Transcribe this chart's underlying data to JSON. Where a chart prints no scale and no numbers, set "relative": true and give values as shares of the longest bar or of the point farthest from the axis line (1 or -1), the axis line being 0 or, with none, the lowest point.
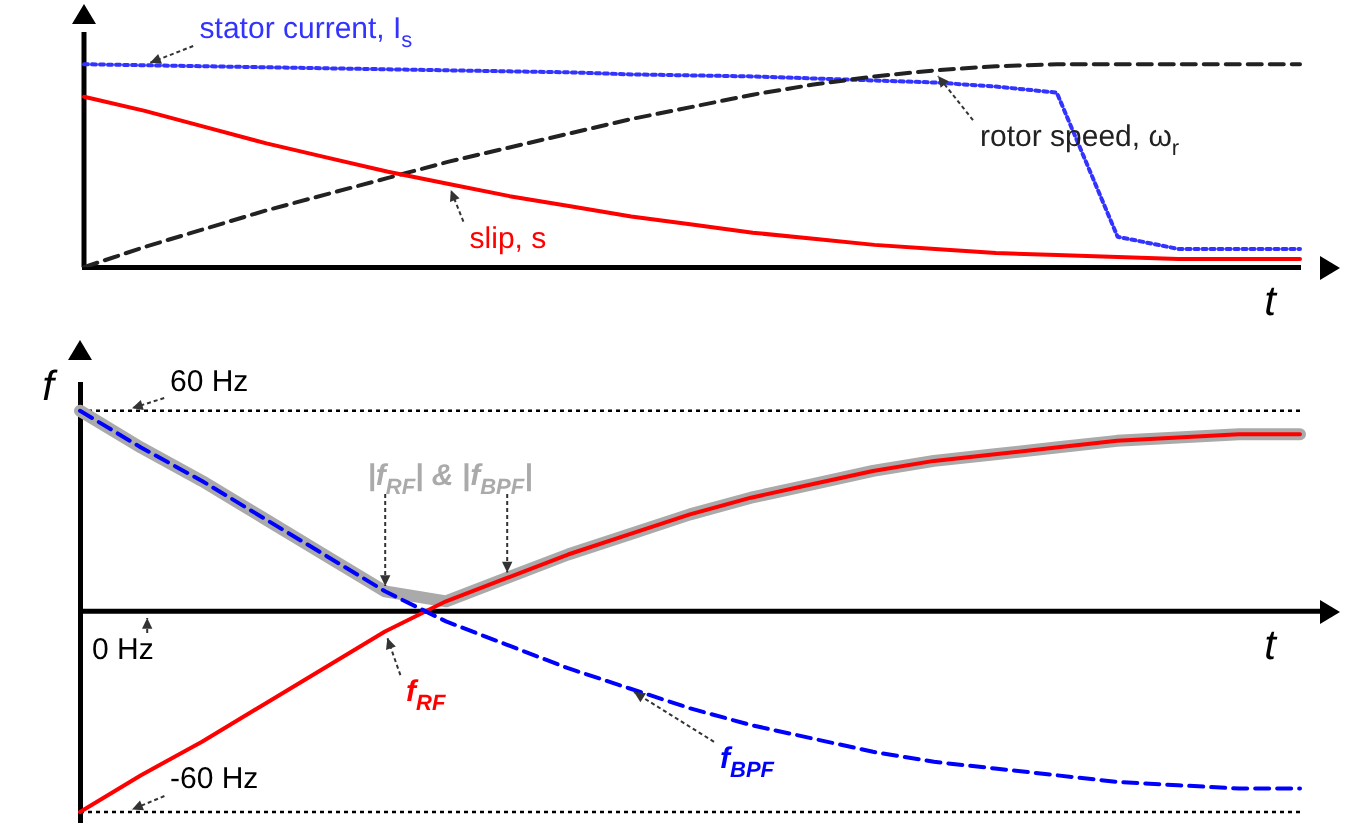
{
  "chart_data": [
    {
      "type": "line",
      "relative": true,
      "xlabel": "t",
      "legend": false,
      "grid": false,
      "marker": "none",
      "categories": [
        null,
        null,
        null,
        null,
        null,
        null,
        null,
        null,
        null,
        null,
        null,
        null,
        null,
        null,
        null,
        null,
        null,
        null,
        null,
        null,
        null
      ],
      "series": [
        {
          "name": "stator current, I$_{s}$",
          "color": "#3333ff",
          "line_style": "dotted",
          "values": [
            1,
            0.995,
            0.99,
            0.985,
            0.98,
            0.975,
            0.97,
            0.965,
            0.96,
            0.95,
            0.945,
            0.94,
            0.93,
            0.92,
            0.91,
            0.89,
            0.86,
            0.15,
            0.09,
            0.09,
            0.09
          ]
        },
        {
          "name": "rotor speed, ω$_{r}$",
          "color": "#222222",
          "line_style": "dashed",
          "values": [
            0,
            0.1,
            0.19,
            0.28,
            0.36,
            0.44,
            0.52,
            0.59,
            0.66,
            0.73,
            0.79,
            0.85,
            0.9,
            0.94,
            0.97,
            0.99,
            1,
            1,
            1,
            1,
            1
          ]
        },
        {
          "name": "slip, s",
          "color": "#ff0000",
          "line_style": "solid",
          "values": [
            0.84,
            0.77,
            0.69,
            0.61,
            0.54,
            0.47,
            0.41,
            0.35,
            0.3,
            0.25,
            0.21,
            0.17,
            0.14,
            0.11,
            0.09,
            0.07,
            0.06,
            0.05,
            0.04,
            0.04,
            0.04
          ]
        }
      ]
    },
    {
      "type": "line",
      "xlabel": "t",
      "ylabel": "f",
      "ylim": [
        -63,
        68
      ],
      "legend": false,
      "grid": false,
      "marker": "none",
      "categories": [
        null,
        null,
        null,
        null,
        null,
        null,
        null,
        null,
        null,
        null,
        null,
        null,
        null,
        null,
        null,
        null,
        null,
        null,
        null,
        null,
        null
      ],
      "ref_lines": [
        {
          "axis": "y",
          "value": 60,
          "label": "60 Hz",
          "line_style": "dotted"
        },
        {
          "axis": "y",
          "value": 0,
          "label": "0 Hz",
          "line_style": "solid"
        },
        {
          "axis": "y",
          "value": -60,
          "label": "-60 Hz",
          "line_style": "dotted"
        }
      ],
      "series": [
        {
          "name": "|f$_{RF}$| & |f$_{BPF}$|",
          "color": "#aaaaaa",
          "line_style": "solid",
          "values": [
            60,
            49,
            39,
            28,
            17,
            6,
            3,
            10,
            17,
            23,
            29,
            34,
            38,
            42,
            45,
            47,
            49,
            51,
            52,
            53,
            53
          ]
        },
        {
          "name": "f$_{RF}$",
          "color": "#ff0000",
          "line_style": "solid",
          "values": [
            -60,
            -49,
            -39,
            -28,
            -17,
            -6,
            3,
            10,
            17,
            23,
            29,
            34,
            38,
            42,
            45,
            47,
            49,
            51,
            52,
            53,
            53
          ]
        },
        {
          "name": "f$_{BPF}$",
          "color": "#0000ff",
          "line_style": "dashed",
          "values": [
            60,
            49,
            39,
            28,
            17,
            6,
            -3,
            -10,
            -17,
            -23,
            -29,
            -34,
            -38,
            -42,
            -45,
            -47,
            -49,
            -51,
            -52,
            -53,
            -53
          ]
        }
      ]
    }
  ]
}
